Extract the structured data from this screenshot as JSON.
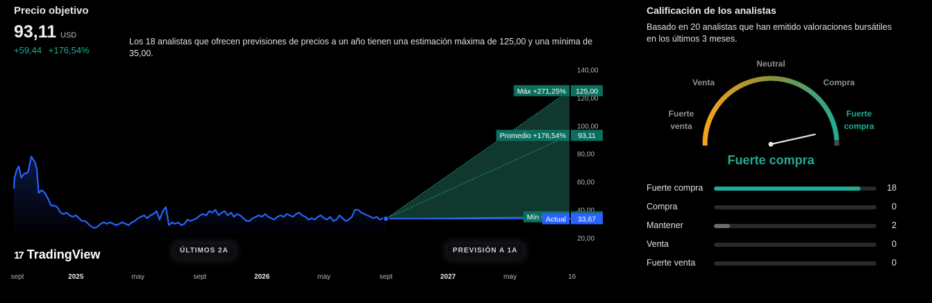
{
  "header": {
    "title": "Precio objetivo",
    "price": "93,11",
    "currency": "USD",
    "change_abs": "+59,44",
    "change_pct": "+176,54%",
    "summary": "Los 18 analistas que ofrecen previsiones de precios a un año tienen una estimación máxima de 125,00 y una mínima de 35,00."
  },
  "colors": {
    "up": "#22ab94",
    "price_line": "#2962ff",
    "forecast_fill": "#10382f",
    "gauge_low": "#f7a21b",
    "gauge_high": "#22ab94"
  },
  "chart_data": {
    "type": "line",
    "y_ticks": [
      "140,00",
      "120,00",
      "100,00",
      "80,00",
      "60,00",
      "40,00",
      "20,00"
    ],
    "ylim": [
      20,
      140
    ],
    "x_ticks": [
      "sept",
      "2025",
      "may",
      "sept",
      "2026",
      "may",
      "sept",
      "2027",
      "may",
      "16"
    ],
    "x_tick_pos": [
      0,
      1,
      2,
      3,
      4,
      5,
      6,
      7,
      8,
      9
    ],
    "x_range": [
      0,
      9
    ],
    "series": [
      {
        "x": [
          0,
          0.01,
          0.05,
          0.08,
          0.12,
          0.17,
          0.2,
          0.23,
          0.28,
          0.34,
          0.37,
          0.4,
          0.45,
          0.5,
          0.55,
          0.6,
          0.65,
          0.7,
          0.75,
          0.8,
          0.85,
          0.9,
          0.95,
          1.0,
          1.05,
          1.1,
          1.15,
          1.2,
          1.25,
          1.3,
          1.35,
          1.4,
          1.45,
          1.5,
          1.55,
          1.6,
          1.65,
          1.7,
          1.75,
          1.8,
          1.85,
          1.9,
          1.95,
          2.0,
          2.05,
          2.1,
          2.15,
          2.2,
          2.25,
          2.3,
          2.35,
          2.4,
          2.45,
          2.5,
          2.55,
          2.6,
          2.65,
          2.7,
          2.75,
          2.8,
          2.85,
          2.9,
          2.95,
          3.0,
          3.05,
          3.1,
          3.15,
          3.2,
          3.25,
          3.3,
          3.35,
          3.4,
          3.45,
          3.5,
          3.55,
          3.6,
          3.65,
          3.7,
          3.75,
          3.8,
          3.85,
          3.9,
          3.95,
          4.0,
          4.05,
          4.1,
          4.15,
          4.2,
          4.25,
          4.3,
          4.35,
          4.4,
          4.45,
          4.5,
          4.55,
          4.6,
          4.65,
          4.7,
          4.75,
          4.8,
          4.85,
          4.9,
          4.95,
          5.0,
          5.05,
          5.1,
          5.15,
          5.2,
          5.25,
          5.3,
          5.35,
          5.4,
          5.45,
          5.5,
          5.55,
          5.6,
          5.65,
          5.7,
          5.75,
          5.8,
          5.85,
          5.9,
          5.95,
          6.0
        ],
        "y": [
          55,
          63,
          69,
          71,
          63,
          66,
          66,
          67,
          78,
          74,
          69,
          52,
          54,
          52,
          48,
          43,
          43,
          42,
          38,
          37,
          38,
          36,
          35,
          36,
          34,
          32,
          32,
          30,
          28,
          27,
          28,
          30,
          31,
          30,
          31,
          30,
          29,
          30,
          31,
          30,
          29,
          31,
          32,
          34,
          35,
          36,
          34,
          36,
          37,
          39,
          33,
          39,
          42,
          29,
          31,
          30,
          31,
          29,
          30,
          33,
          32,
          33,
          34,
          36,
          37,
          36,
          39,
          38,
          40,
          36,
          38,
          39,
          36,
          38,
          35,
          37,
          36,
          34,
          32,
          32,
          34,
          35,
          36,
          35,
          37,
          35,
          34,
          33,
          35,
          36,
          35,
          37,
          36,
          35,
          37,
          38,
          36,
          35,
          33,
          34,
          33,
          35,
          36,
          34,
          33,
          35,
          32,
          33,
          36,
          34,
          32,
          33,
          35,
          40,
          40,
          38,
          37,
          36,
          35,
          34,
          35,
          33,
          34,
          33.67
        ]
      }
    ],
    "forecast": {
      "max": {
        "label": "Máx +271,25%",
        "value": 125,
        "value_text": "125,00"
      },
      "avg": {
        "label": "Promedio +176,54%",
        "value": 93.11,
        "value_text": "93,11"
      },
      "min": {
        "label": "Mín +3,95%",
        "value": 35,
        "value_text": "35,00"
      },
      "current": {
        "label": "Actual",
        "value": 33.67,
        "value_text": "33,67"
      }
    },
    "grid": false
  },
  "pills": {
    "history": "ÚLTIMOS 2A",
    "forecast": "PREVISIÓN A 1A"
  },
  "logo": {
    "mark": "17",
    "text": "TradingView"
  },
  "rating": {
    "title": "Calificación de los analistas",
    "subtitle": "Basado en 20 analistas que han emitido valoraciones bursátiles en los últimos 3 meses.",
    "gauge_labels": {
      "strong_sell_1": "Fuerte",
      "strong_sell_2": "venta",
      "sell": "Venta",
      "neutral": "Neutral",
      "buy": "Compra",
      "strong_buy_1": "Fuerte",
      "strong_buy_2": "compra"
    },
    "needle_score": 0.93,
    "verdict": "Fuerte compra",
    "rows": [
      {
        "label": "Fuerte compra",
        "count": 18,
        "color": "#22ab94"
      },
      {
        "label": "Compra",
        "count": 0,
        "color": "#22ab94"
      },
      {
        "label": "Mantener",
        "count": 2,
        "color": "#6b6b70"
      },
      {
        "label": "Venta",
        "count": 0,
        "color": "#6b6b70"
      },
      {
        "label": "Fuerte venta",
        "count": 0,
        "color": "#6b6b70"
      }
    ],
    "total": 20
  }
}
